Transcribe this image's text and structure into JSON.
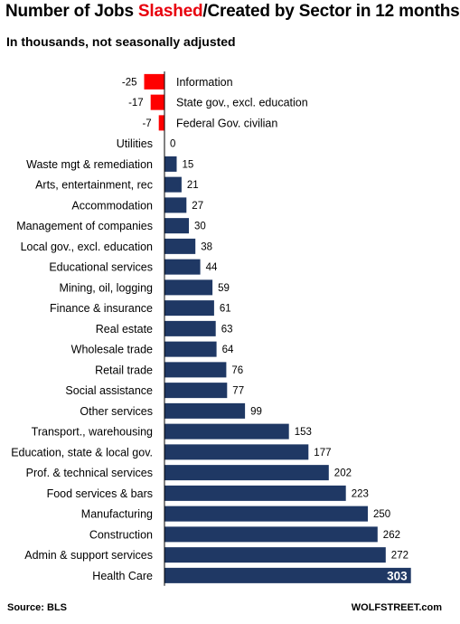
{
  "title": {
    "prefix": "Number of Jobs ",
    "highlight": "Slashed",
    "suffix": "/Created by Sector in 12 months"
  },
  "subtitle": "In thousands, not seasonally adjusted",
  "footer": {
    "source": "Source: BLS",
    "brand": "WOLFSTREET.com"
  },
  "colors": {
    "positive": "#1f3864",
    "negative": "#ff0000",
    "highlight": "#e8000d",
    "axis": "#000000"
  },
  "chart_data": {
    "type": "bar",
    "orientation": "horizontal",
    "title": "Number of Jobs Slashed/Created by Sector in 12 months",
    "subtitle": "In thousands, not seasonally adjusted",
    "categories": [
      "Information",
      "State gov., excl. education",
      "Federal Gov. civilian",
      "Utilities",
      "Waste mgt & remediation",
      "Arts, entertainment, rec",
      "Accommodation",
      "Management of companies",
      "Local gov., excl. education",
      "Educational services",
      "Mining, oil, logging",
      "Finance & insurance",
      "Real estate",
      "Wholesale trade",
      "Retail trade",
      "Social assistance",
      "Other services",
      "Transport., warehousing",
      "Education, state & local gov.",
      "Prof. & technical services",
      "Food services & bars",
      "Manufacturing",
      "Construction",
      "Admin & support services",
      "Health Care"
    ],
    "values": [
      -25,
      -17,
      -7,
      0,
      15,
      21,
      27,
      30,
      38,
      44,
      59,
      61,
      63,
      64,
      76,
      77,
      99,
      153,
      177,
      202,
      223,
      250,
      262,
      272,
      303
    ],
    "data_labels": [
      "-25",
      "-17",
      "-7",
      "0",
      "15",
      "21",
      "27",
      "30",
      "38",
      "44",
      "59",
      "61",
      "63",
      "64",
      "76",
      "77",
      "99",
      "153",
      "177",
      "202",
      "223",
      "250",
      "262",
      "272",
      "303"
    ],
    "xlim": [
      -25,
      303
    ],
    "grid": false,
    "legend": "none"
  }
}
